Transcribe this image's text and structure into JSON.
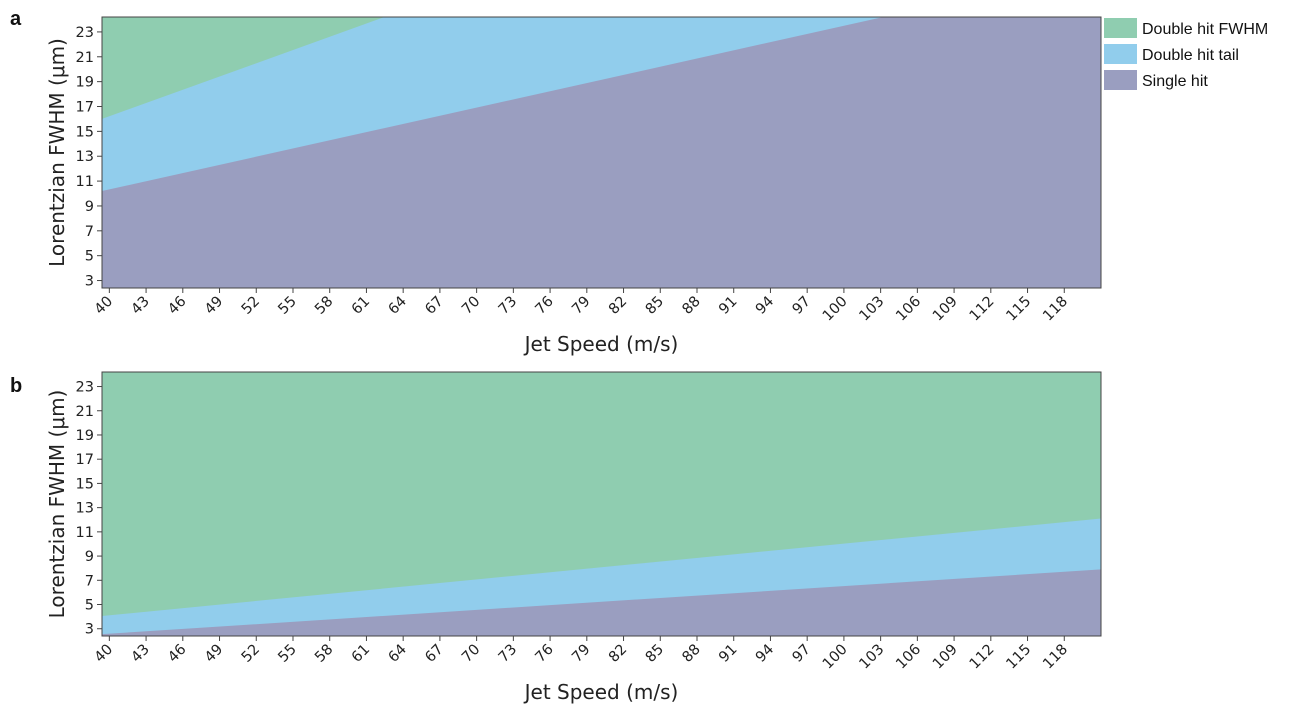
{
  "figure": {
    "legend": [
      {
        "label": "Double hit FWHM",
        "color": "#8fcdb0"
      },
      {
        "label": "Double hit tail",
        "color": "#91cdec"
      },
      {
        "label": "Single hit",
        "color": "#9a9ec0"
      }
    ]
  },
  "chart_data": [
    {
      "panel": "a",
      "type": "area",
      "xlabel": "Jet Speed (m/s)",
      "ylabel": "Lorentzian FWHM (μm)",
      "x_ticks": [
        40,
        43,
        46,
        49,
        52,
        55,
        58,
        61,
        64,
        67,
        70,
        73,
        76,
        79,
        82,
        85,
        88,
        91,
        94,
        97,
        100,
        103,
        106,
        109,
        112,
        115,
        118
      ],
      "y_ticks": [
        3,
        5,
        7,
        9,
        11,
        13,
        15,
        17,
        19,
        21,
        23
      ],
      "xlim": [
        39.4,
        121
      ],
      "ylim": [
        2.4,
        24.2
      ],
      "regions": [
        {
          "name": "Double hit FWHM",
          "color": "#8fcdb0",
          "role": "top"
        },
        {
          "name": "Double hit tail",
          "color": "#91cdec",
          "role": "middle"
        },
        {
          "name": "Single hit",
          "color": "#9a9ec0",
          "role": "bottom"
        }
      ],
      "boundaries": [
        {
          "between": [
            "Single hit",
            "Double hit tail"
          ],
          "x": [
            39.4,
            121
          ],
          "y": [
            10.2,
            28.1
          ]
        },
        {
          "between": [
            "Double hit tail",
            "Double hit FWHM"
          ],
          "x": [
            39.4,
            121
          ],
          "y": [
            16.0,
            45.0
          ]
        }
      ]
    },
    {
      "panel": "b",
      "type": "area",
      "xlabel": "Jet Speed (m/s)",
      "ylabel": "Lorentzian FWHM (μm)",
      "x_ticks": [
        40,
        43,
        46,
        49,
        52,
        55,
        58,
        61,
        64,
        67,
        70,
        73,
        76,
        79,
        82,
        85,
        88,
        91,
        94,
        97,
        100,
        103,
        106,
        109,
        112,
        115,
        118
      ],
      "y_ticks": [
        3,
        5,
        7,
        9,
        11,
        13,
        15,
        17,
        19,
        21,
        23
      ],
      "xlim": [
        39.4,
        121
      ],
      "ylim": [
        2.4,
        24.2
      ],
      "regions": [
        {
          "name": "Double hit FWHM",
          "color": "#8fcdb0",
          "role": "top"
        },
        {
          "name": "Double hit tail",
          "color": "#91cdec",
          "role": "middle"
        },
        {
          "name": "Single hit",
          "color": "#9a9ec0",
          "role": "bottom"
        }
      ],
      "boundaries": [
        {
          "between": [
            "Single hit",
            "Double hit tail"
          ],
          "x": [
            39.4,
            121
          ],
          "y": [
            2.55,
            7.9
          ]
        },
        {
          "between": [
            "Double hit tail",
            "Double hit FWHM"
          ],
          "x": [
            39.4,
            121
          ],
          "y": [
            4.05,
            12.1
          ]
        }
      ]
    }
  ]
}
